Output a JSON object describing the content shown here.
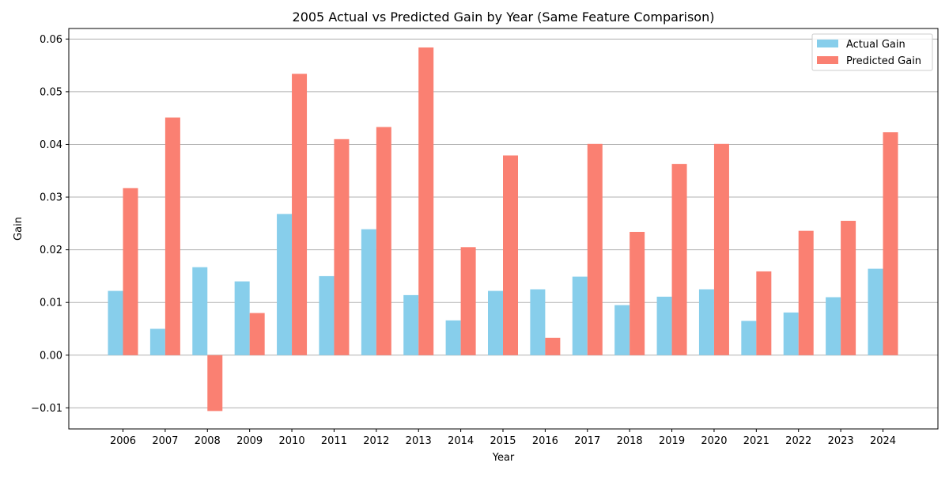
{
  "chart_data": {
    "type": "bar",
    "title": "2005 Actual vs Predicted Gain by Year (Same Feature Comparison)",
    "xlabel": "Year",
    "ylabel": "Gain",
    "categories": [
      "2006",
      "2007",
      "2008",
      "2009",
      "2010",
      "2011",
      "2012",
      "2013",
      "2014",
      "2015",
      "2016",
      "2017",
      "2018",
      "2019",
      "2020",
      "2021",
      "2022",
      "2023",
      "2024"
    ],
    "series": [
      {
        "name": "Actual Gain",
        "color": "#87CEEB",
        "values": [
          0.0122,
          0.005,
          0.0167,
          0.014,
          0.0268,
          0.015,
          0.0239,
          0.0114,
          0.0066,
          0.0122,
          0.0125,
          0.0149,
          0.0095,
          0.0111,
          0.0125,
          0.0065,
          0.0081,
          0.011,
          0.0164
        ]
      },
      {
        "name": "Predicted Gain",
        "color": "#FA8072",
        "values": [
          0.0317,
          0.0451,
          -0.0106,
          0.008,
          0.0534,
          0.041,
          0.0433,
          0.0584,
          0.0205,
          0.0379,
          0.0033,
          0.0401,
          0.0234,
          0.0363,
          0.0401,
          0.0159,
          0.0236,
          0.0255,
          0.0423
        ]
      }
    ],
    "ylim": [
      -0.014,
      0.062
    ],
    "yticks": [
      -0.01,
      0.0,
      0.01,
      0.02,
      0.03,
      0.04,
      0.05,
      0.06
    ],
    "ytick_labels": [
      "−0.01",
      "0.00",
      "0.01",
      "0.02",
      "0.03",
      "0.04",
      "0.05",
      "0.06"
    ],
    "grid": "y",
    "legend_position": "top-right"
  }
}
